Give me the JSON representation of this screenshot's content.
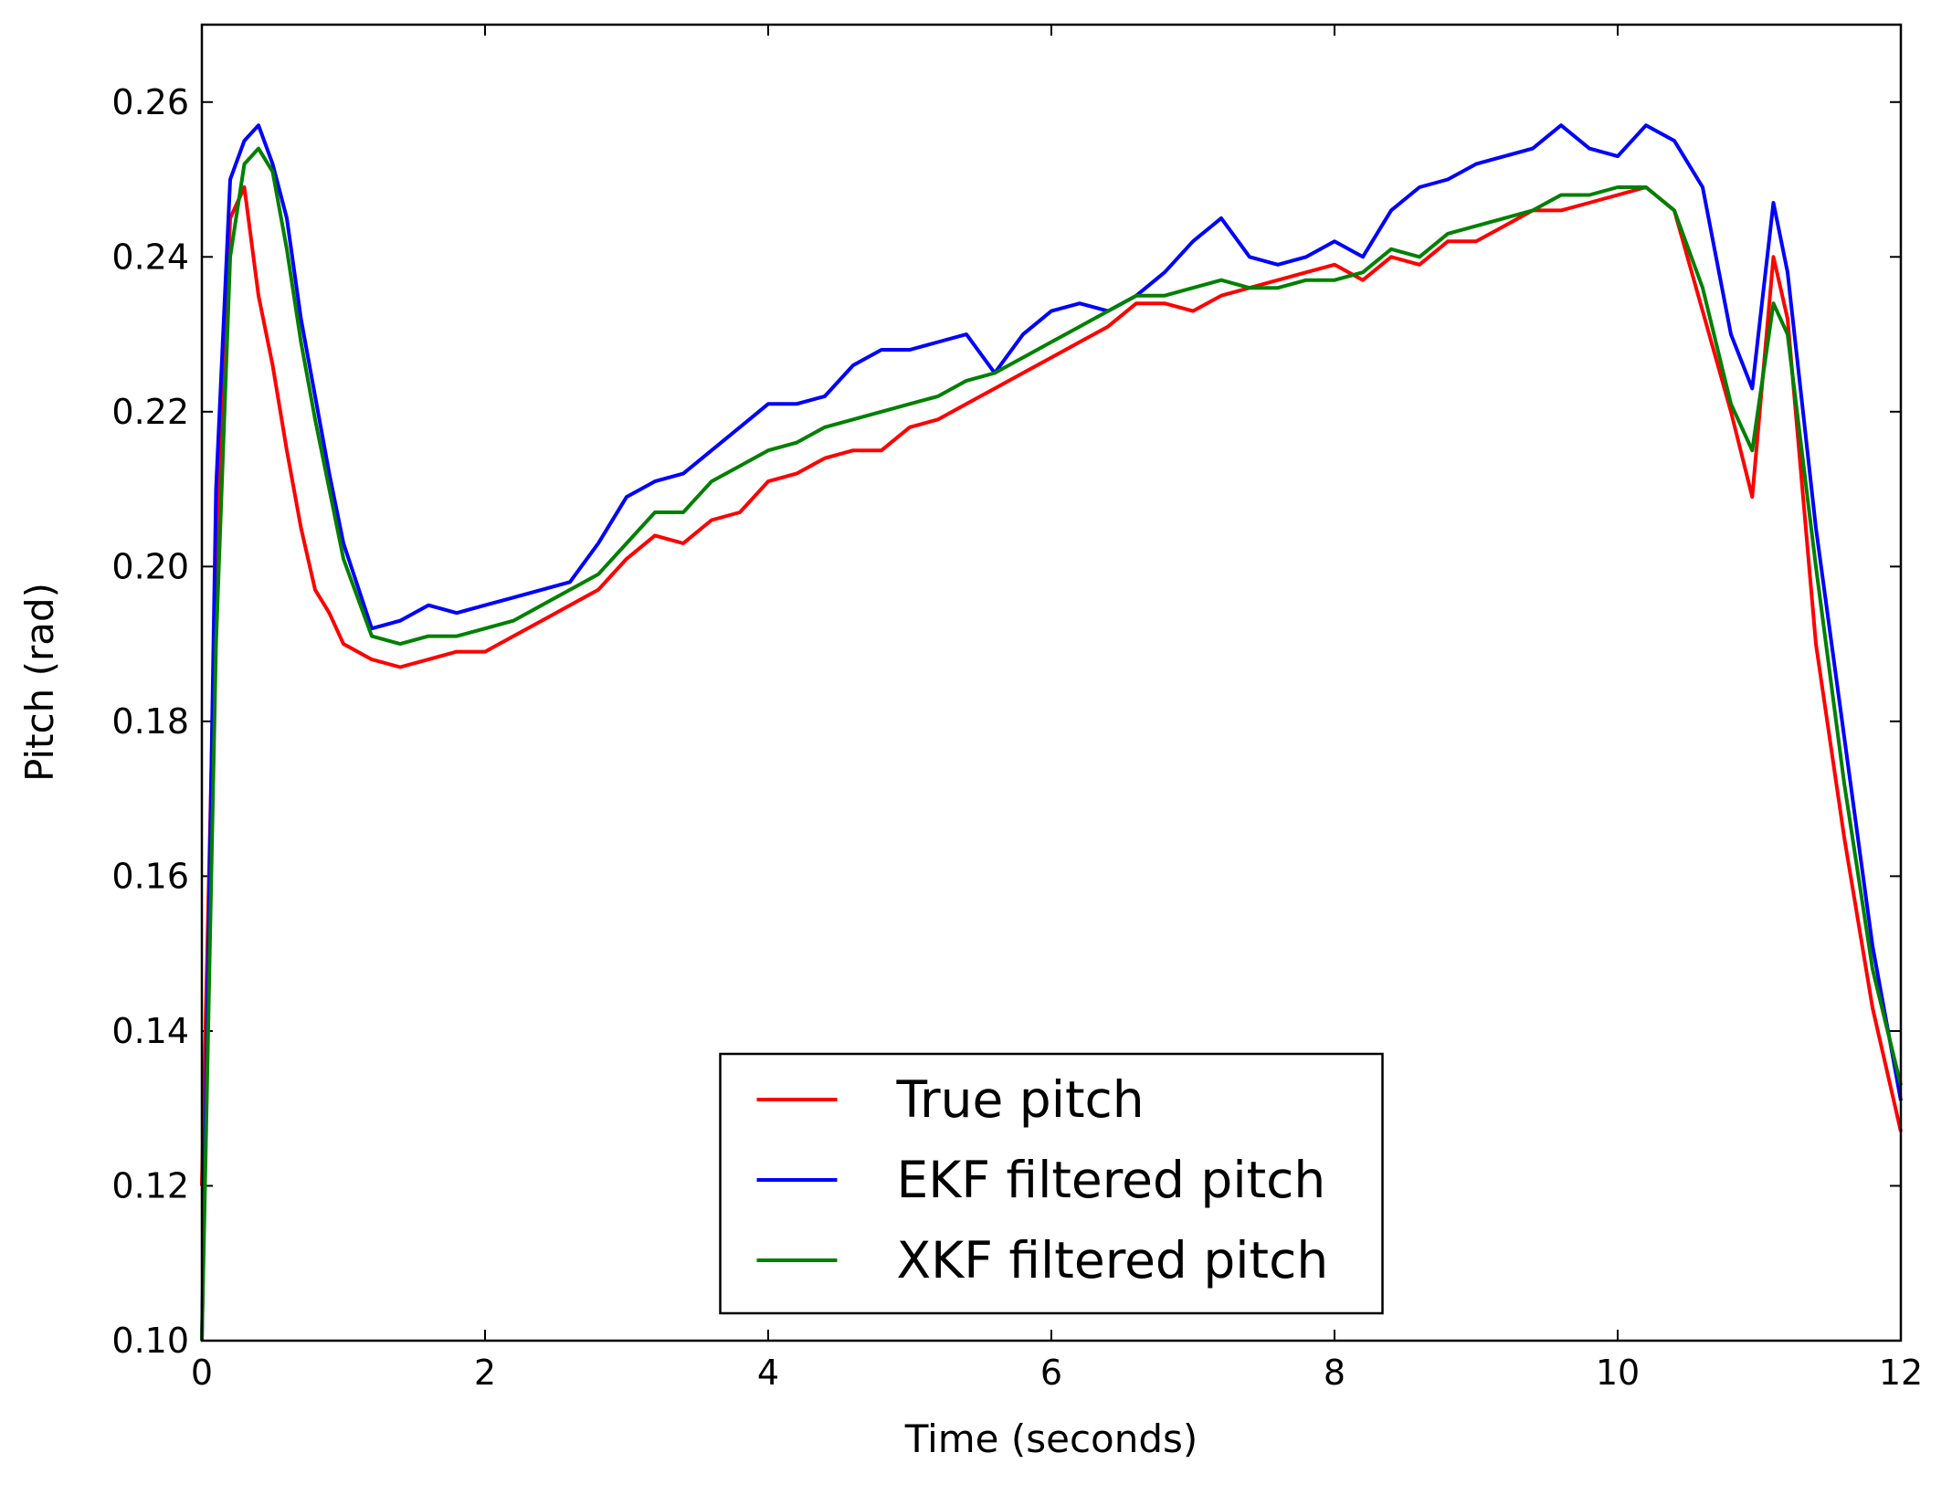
{
  "chart_data": {
    "type": "line",
    "xlabel": "Time (seconds)",
    "ylabel": "Pitch (rad)",
    "x": [
      0,
      0.1,
      0.2,
      0.3,
      0.4,
      0.5,
      0.6,
      0.7,
      0.8,
      0.9,
      1.0,
      1.2,
      1.4,
      1.6,
      1.8,
      2.0,
      2.2,
      2.4,
      2.6,
      2.8,
      3.0,
      3.2,
      3.4,
      3.6,
      3.8,
      4.0,
      4.2,
      4.4,
      4.6,
      4.8,
      5.0,
      5.2,
      5.4,
      5.6,
      5.8,
      6.0,
      6.2,
      6.4,
      6.6,
      6.8,
      7.0,
      7.2,
      7.4,
      7.6,
      7.8,
      8.0,
      8.2,
      8.4,
      8.6,
      8.8,
      9.0,
      9.2,
      9.4,
      9.6,
      9.8,
      10.0,
      10.2,
      10.4,
      10.6,
      10.8,
      10.95,
      11.1,
      11.2,
      11.4,
      11.6,
      11.8,
      12.0
    ],
    "series": [
      {
        "name": "True pitch",
        "color": "#ff0000",
        "values": [
          0.12,
          0.2,
          0.245,
          0.249,
          0.235,
          0.226,
          0.215,
          0.205,
          0.197,
          0.194,
          0.19,
          0.188,
          0.187,
          0.188,
          0.189,
          0.189,
          0.191,
          0.193,
          0.195,
          0.197,
          0.201,
          0.204,
          0.203,
          0.206,
          0.207,
          0.211,
          0.212,
          0.214,
          0.215,
          0.215,
          0.218,
          0.219,
          0.221,
          0.223,
          0.225,
          0.227,
          0.229,
          0.231,
          0.234,
          0.234,
          0.233,
          0.235,
          0.236,
          0.237,
          0.238,
          0.239,
          0.237,
          0.24,
          0.239,
          0.242,
          0.242,
          0.244,
          0.246,
          0.246,
          0.247,
          0.248,
          0.249,
          0.246,
          0.233,
          0.22,
          0.209,
          0.24,
          0.232,
          0.19,
          0.165,
          0.143,
          0.127
        ]
      },
      {
        "name": "EKF filtered pitch",
        "color": "#0000ff",
        "values": [
          0.1,
          0.21,
          0.25,
          0.255,
          0.257,
          0.252,
          0.245,
          0.232,
          0.222,
          0.212,
          0.203,
          0.192,
          0.193,
          0.195,
          0.194,
          0.195,
          0.196,
          0.197,
          0.198,
          0.203,
          0.209,
          0.211,
          0.212,
          0.215,
          0.218,
          0.221,
          0.221,
          0.222,
          0.226,
          0.228,
          0.228,
          0.229,
          0.23,
          0.225,
          0.23,
          0.233,
          0.234,
          0.233,
          0.235,
          0.238,
          0.242,
          0.245,
          0.24,
          0.239,
          0.24,
          0.242,
          0.24,
          0.246,
          0.249,
          0.25,
          0.252,
          0.253,
          0.254,
          0.257,
          0.254,
          0.253,
          0.257,
          0.255,
          0.249,
          0.23,
          0.223,
          0.247,
          0.238,
          0.205,
          0.178,
          0.151,
          0.131
        ]
      },
      {
        "name": "XKF filtered pitch",
        "color": "#008000",
        "values": [
          0.1,
          0.19,
          0.24,
          0.252,
          0.254,
          0.251,
          0.241,
          0.229,
          0.219,
          0.21,
          0.201,
          0.191,
          0.19,
          0.191,
          0.191,
          0.192,
          0.193,
          0.195,
          0.197,
          0.199,
          0.203,
          0.207,
          0.207,
          0.211,
          0.213,
          0.215,
          0.216,
          0.218,
          0.219,
          0.22,
          0.221,
          0.222,
          0.224,
          0.225,
          0.227,
          0.229,
          0.231,
          0.233,
          0.235,
          0.235,
          0.236,
          0.237,
          0.236,
          0.236,
          0.237,
          0.237,
          0.238,
          0.241,
          0.24,
          0.243,
          0.244,
          0.245,
          0.246,
          0.248,
          0.248,
          0.249,
          0.249,
          0.246,
          0.236,
          0.221,
          0.215,
          0.234,
          0.23,
          0.2,
          0.172,
          0.148,
          0.133
        ]
      }
    ],
    "xlim": [
      0,
      12
    ],
    "xticks": [
      0,
      2,
      4,
      6,
      8,
      10,
      12
    ],
    "ylim": [
      0.1,
      0.27
    ],
    "yticks": [
      {
        "value": 0.1,
        "label": "0.10"
      },
      0.12,
      0.14,
      0.16,
      0.18,
      {
        "value": 0.2,
        "label": "0.20"
      },
      0.22,
      0.24,
      0.26
    ],
    "legend": "lower center",
    "grid": false
  }
}
